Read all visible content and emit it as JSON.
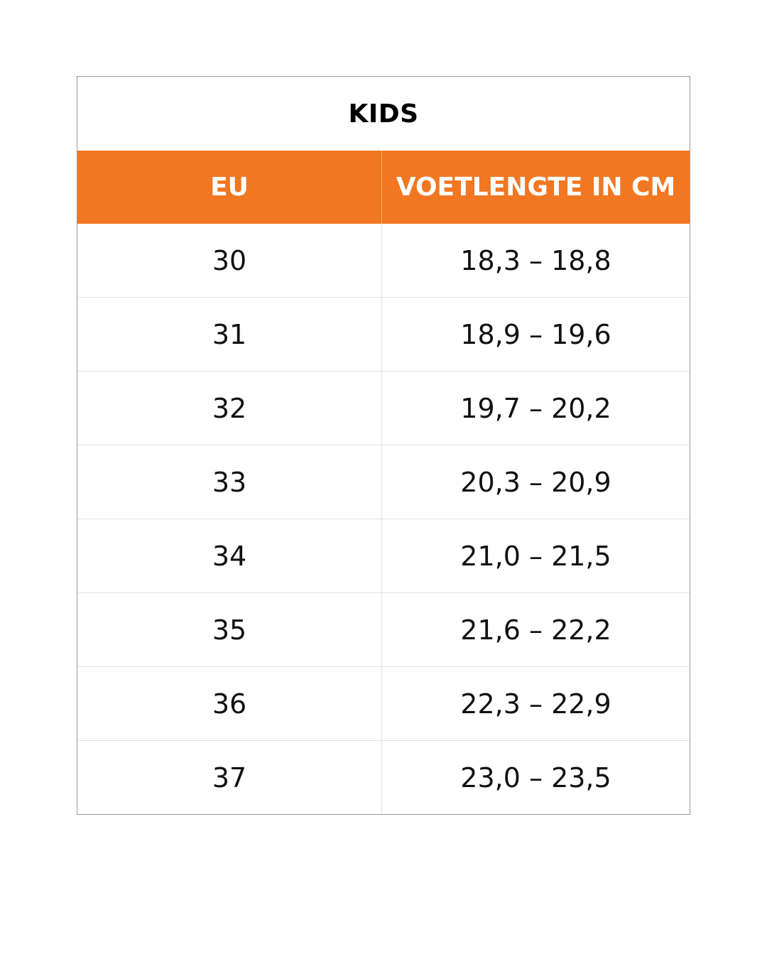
{
  "table": {
    "title": "KIDS",
    "header_color": "#f17722",
    "columns": [
      "EU",
      "VOETLENGTE IN CM"
    ],
    "rows": [
      {
        "eu": "30",
        "length": "18,3 – 18,8"
      },
      {
        "eu": "31",
        "length": "18,9 – 19,6"
      },
      {
        "eu": "32",
        "length": "19,7 – 20,2"
      },
      {
        "eu": "33",
        "length": "20,3 – 20,9"
      },
      {
        "eu": "34",
        "length": "21,0 – 21,5"
      },
      {
        "eu": "35",
        "length": "21,6 – 22,2"
      },
      {
        "eu": "36",
        "length": "22,3 – 22,9"
      },
      {
        "eu": "37",
        "length": "23,0 – 23,5"
      }
    ]
  }
}
